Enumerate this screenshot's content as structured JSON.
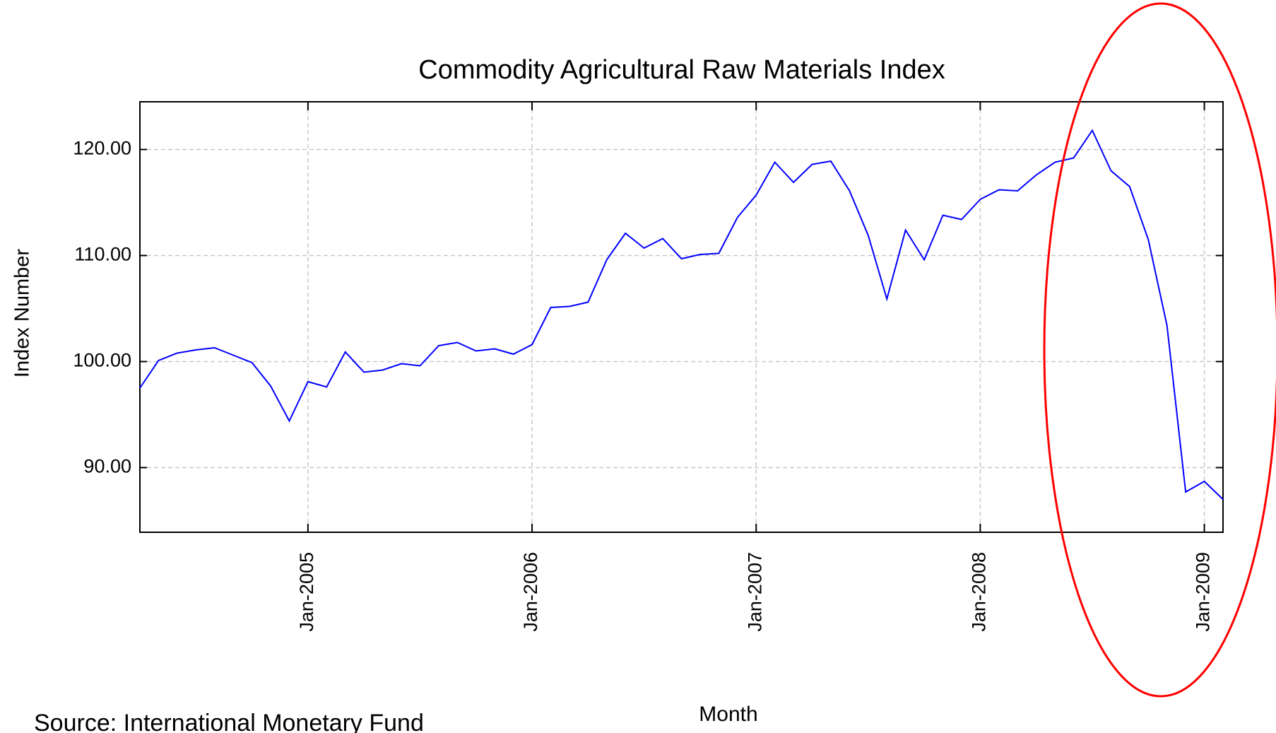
{
  "chart_data": {
    "type": "line",
    "title": "Commodity Agricultural Raw Materials Index",
    "x_label": "Month",
    "y_label": "Index Number",
    "source": "Source: International Monetary Fund",
    "x": [
      "Apr-2004",
      "May-2004",
      "Jun-2004",
      "Jul-2004",
      "Aug-2004",
      "Sep-2004",
      "Oct-2004",
      "Nov-2004",
      "Dec-2004",
      "Jan-2005",
      "Feb-2005",
      "Mar-2005",
      "Apr-2005",
      "May-2005",
      "Jun-2005",
      "Jul-2005",
      "Aug-2005",
      "Sep-2005",
      "Oct-2005",
      "Nov-2005",
      "Dec-2005",
      "Jan-2006",
      "Feb-2006",
      "Mar-2006",
      "Apr-2006",
      "May-2006",
      "Jun-2006",
      "Jul-2006",
      "Aug-2006",
      "Sep-2006",
      "Oct-2006",
      "Nov-2006",
      "Dec-2006",
      "Jan-2007",
      "Feb-2007",
      "Mar-2007",
      "Apr-2007",
      "May-2007",
      "Jun-2007",
      "Jul-2007",
      "Aug-2007",
      "Sep-2007",
      "Oct-2007",
      "Nov-2007",
      "Dec-2007",
      "Jan-2008",
      "Feb-2008",
      "Mar-2008",
      "Apr-2008",
      "May-2008",
      "Jun-2008",
      "Jul-2008",
      "Aug-2008",
      "Sep-2008",
      "Oct-2008",
      "Nov-2008",
      "Dec-2008",
      "Jan-2009",
      "Feb-2009"
    ],
    "series": [
      {
        "name": "Index Number",
        "color": "#0000ff",
        "values": [
          97.5,
          100.1,
          100.8,
          101.1,
          101.3,
          100.6,
          99.9,
          97.7,
          94.4,
          98.1,
          97.6,
          100.9,
          99.0,
          99.2,
          99.8,
          99.6,
          101.5,
          101.8,
          101.0,
          101.2,
          100.7,
          101.6,
          105.1,
          105.2,
          105.6,
          109.6,
          112.1,
          110.7,
          111.6,
          109.7,
          110.1,
          110.2,
          113.6,
          115.7,
          118.8,
          116.9,
          118.6,
          118.9,
          116.1,
          111.9,
          105.9,
          112.4,
          109.6,
          113.8,
          113.4,
          115.3,
          116.2,
          116.1,
          117.6,
          118.8,
          119.2,
          121.8,
          118.0,
          116.5,
          111.5,
          103.4,
          87.7,
          88.7,
          87.0
        ]
      }
    ],
    "xticks": [
      "Jan-2005",
      "Jan-2006",
      "Jan-2007",
      "Jan-2008",
      "Jan-2009"
    ],
    "ylim": [
      83.9,
      124.5
    ],
    "yticks": [
      {
        "value": 90,
        "label": "90.00"
      },
      {
        "value": 100,
        "label": "100.00"
      },
      {
        "value": 110,
        "label": "110.00"
      },
      {
        "value": 120,
        "label": "120.00"
      }
    ],
    "grid": true
  }
}
